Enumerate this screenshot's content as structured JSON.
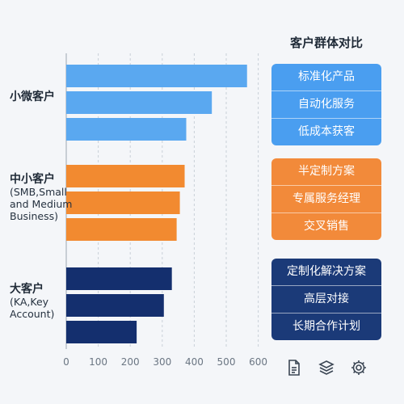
{
  "panel_title": "客户群体对比",
  "categories": [
    {
      "name": "小微客户",
      "sub": ""
    },
    {
      "name": "中小客户",
      "sub": "(SMB,Small and Medium Business)"
    },
    {
      "name": "大客户",
      "sub": "(KA,Key Account)"
    }
  ],
  "groups": [
    {
      "color": "#4a9ef0",
      "items": [
        "标准化产品",
        "自动化服务",
        "低成本获客"
      ]
    },
    {
      "color": "#f28a3a",
      "items": [
        "半定制方案",
        "专属服务经理",
        "交叉销售"
      ]
    },
    {
      "color": "#1b3a78",
      "items": [
        "定制化解决方案",
        "高层对接",
        "长期合作计划"
      ]
    }
  ],
  "icons": [
    "document-icon",
    "layers-icon",
    "gear-icon"
  ],
  "colors": {
    "small": "#5aa8f0",
    "smb": "#f28a30",
    "ka": "#142f6e",
    "grid": "#c9d0d8",
    "tick": "#6b7683"
  },
  "chart_data": {
    "type": "bar",
    "orientation": "horizontal",
    "title": "",
    "xlabel": "",
    "ylabel": "",
    "xlim": [
      0,
      650
    ],
    "xticks": [
      0,
      100,
      200,
      300,
      400,
      500,
      600
    ],
    "grid": "vertical dashed",
    "groups": [
      {
        "category": "小微客户",
        "values": [
          565,
          455,
          375
        ]
      },
      {
        "category": "中小客户",
        "values": [
          370,
          355,
          345
        ]
      },
      {
        "category": "大客户",
        "values": [
          330,
          305,
          220
        ]
      }
    ]
  }
}
